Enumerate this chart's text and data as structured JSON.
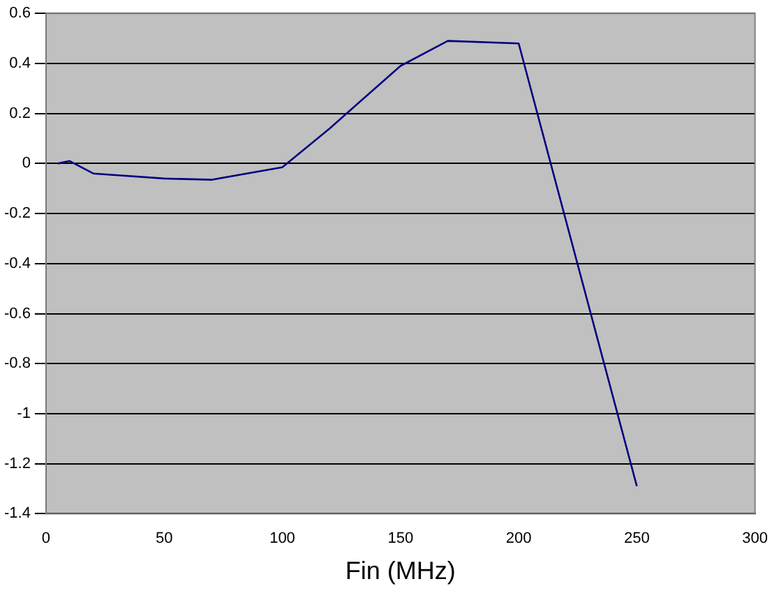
{
  "chart_data": {
    "type": "line",
    "xlabel": "Fin (MHz)",
    "x": [
      5,
      10,
      20,
      50,
      70,
      100,
      120,
      150,
      170,
      200,
      250
    ],
    "series": [
      {
        "color": "#000080",
        "values": [
          0,
          0.01,
          -0.04,
          -0.06,
          -0.065,
          -0.015,
          0.14,
          0.39,
          0.49,
          0.48,
          -1.29
        ]
      }
    ],
    "xlim": [
      0,
      300
    ],
    "xticks": [
      0,
      50,
      100,
      150,
      200,
      250,
      300
    ],
    "ylim": [
      -1.4,
      0.6
    ],
    "yticks": [
      -1.4,
      -1.2,
      -1,
      -0.8,
      -0.6,
      -0.4,
      -0.2,
      0,
      0.2,
      0.4,
      0.6
    ],
    "grid": "y",
    "legend": false,
    "marker": "none",
    "line_style": "solid"
  }
}
